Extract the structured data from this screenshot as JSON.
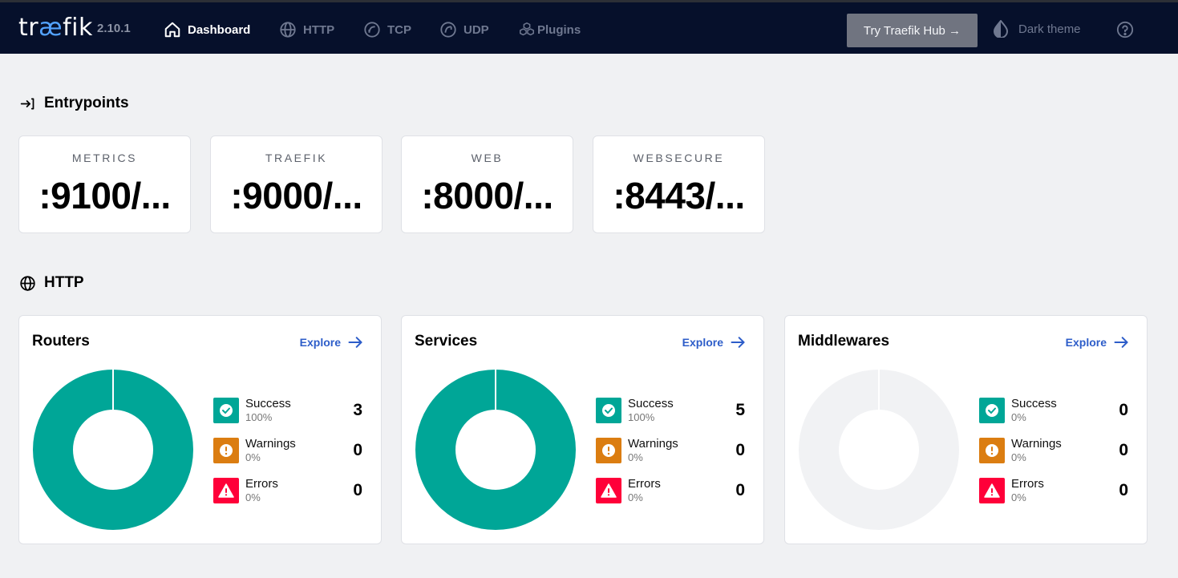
{
  "nav": {
    "brand": {
      "pre": "tr",
      "ae": "æ",
      "post": "fik"
    },
    "version": "2.10.1",
    "items": [
      {
        "label": "Dashboard"
      },
      {
        "label": "HTTP"
      },
      {
        "label": "TCP"
      },
      {
        "label": "UDP"
      },
      {
        "label": "Plugins"
      }
    ],
    "hub_button": "Try Traefik Hub →",
    "theme_label": "Dark theme"
  },
  "entrypoints": {
    "heading": "Entrypoints",
    "items": [
      {
        "name": "METRICS",
        "address": ":9100/..."
      },
      {
        "name": "TRAEFIK",
        "address": ":9000/..."
      },
      {
        "name": "WEB",
        "address": ":8000/..."
      },
      {
        "name": "WEBSECURE",
        "address": ":8443/..."
      }
    ]
  },
  "http": {
    "heading": "HTTP",
    "explore_label": "Explore",
    "cards": [
      {
        "title": "Routers",
        "donut_success_fraction": 1,
        "stats": [
          {
            "label": "Success",
            "pct": "100%",
            "count": "3"
          },
          {
            "label": "Warnings",
            "pct": "0%",
            "count": "0"
          },
          {
            "label": "Errors",
            "pct": "0%",
            "count": "0"
          }
        ]
      },
      {
        "title": "Services",
        "donut_success_fraction": 1,
        "stats": [
          {
            "label": "Success",
            "pct": "100%",
            "count": "5"
          },
          {
            "label": "Warnings",
            "pct": "0%",
            "count": "0"
          },
          {
            "label": "Errors",
            "pct": "0%",
            "count": "0"
          }
        ]
      },
      {
        "title": "Middlewares",
        "donut_success_fraction": 0,
        "stats": [
          {
            "label": "Success",
            "pct": "0%",
            "count": "0"
          },
          {
            "label": "Warnings",
            "pct": "0%",
            "count": "0"
          },
          {
            "label": "Errors",
            "pct": "0%",
            "count": "0"
          }
        ]
      }
    ]
  },
  "colors": {
    "success": "#00a697",
    "warning": "#db7d11",
    "error": "#ff0039",
    "donut_empty": "#f1f2f4",
    "nav_bg": "#06102b",
    "accent_link": "#2d5dc9"
  }
}
